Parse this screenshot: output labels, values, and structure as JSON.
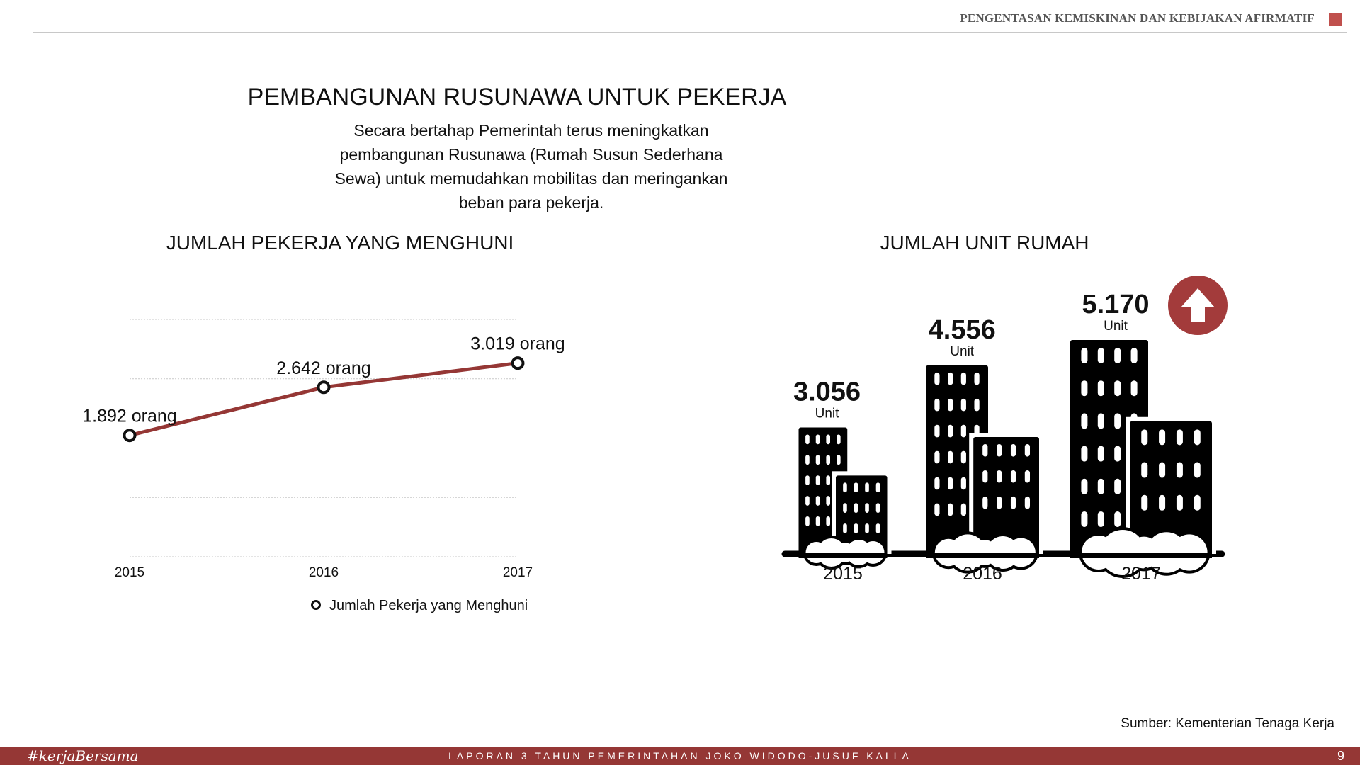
{
  "header": {
    "section_label": "PENGENTASAN KEMISKINAN DAN KEBIJAKAN AFIRMATIF",
    "accent_color": "#c0504d"
  },
  "main": {
    "title": "PEMBANGUNAN RUSUNAWA UNTUK PEKERJA",
    "subtitle": "Secara bertahap Pemerintah terus meningkatkan pembangunan Rusunawa (Rumah Susun Sederhana Sewa) untuk memudahkan mobilitas dan meringankan beban para pekerja."
  },
  "chart_data": [
    {
      "type": "line",
      "title": "JUMLAH PEKERJA YANG MENGHUNI",
      "categories": [
        "2015",
        "2016",
        "2017"
      ],
      "series": [
        {
          "name": "Jumlah Pekerja yang Menghuni",
          "values": [
            1892,
            2642,
            3019
          ],
          "labels": [
            "1.892 orang",
            "2.642 orang",
            "3.019 orang"
          ],
          "color": "#953735"
        }
      ],
      "ylim": [
        0,
        3700
      ],
      "grid": true,
      "legend": "bottom"
    },
    {
      "type": "bar",
      "title": "JUMLAH UNIT RUMAH",
      "categories": [
        "2015",
        "2016",
        "2017"
      ],
      "values": [
        3056,
        4556,
        5170
      ],
      "value_labels": [
        "3.056",
        "4.556",
        "5.170"
      ],
      "unit_label": "Unit",
      "indicator": "up-arrow-icon",
      "indicator_color": "#a33b3b"
    }
  ],
  "source": "Sumber: Kementerian Tenaga Kerja",
  "footer": {
    "hashtag": "#kerjaBersama",
    "report_title": "LAPORAN 3 TAHUN PEMERINTAHAN JOKO WIDODO-JUSUF KALLA",
    "page_number": "9",
    "bar_color": "#953735"
  }
}
